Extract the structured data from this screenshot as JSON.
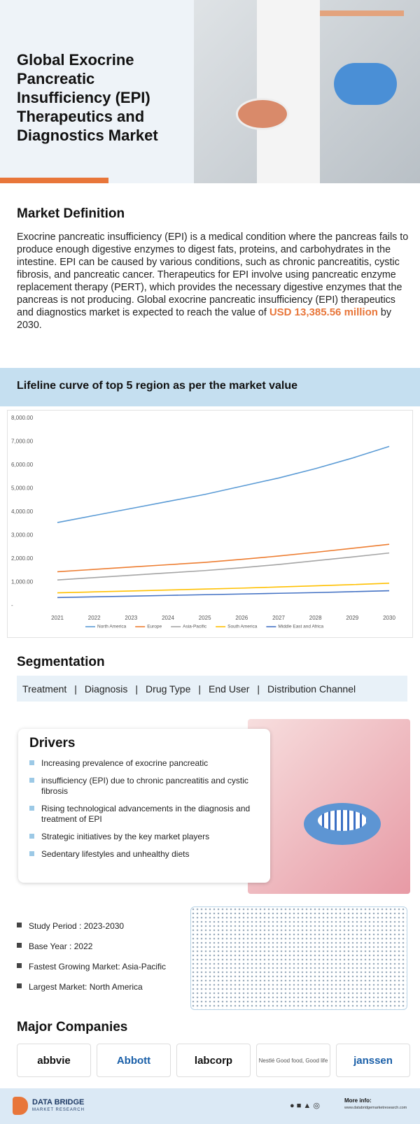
{
  "header": {
    "title": "Global Exocrine Pancreatic Insufficiency (EPI) Therapeutics and Diagnostics Market"
  },
  "definition": {
    "heading": "Market Definition",
    "text": "Exocrine pancreatic insufficiency (EPI) is a medical condition where the pancreas fails to produce enough digestive enzymes to digest fats, proteins, and carbohydrates in the intestine. EPI can be caused by various conditions, such as chronic pancreatitis, cystic fibrosis, and pancreatic cancer. Therapeutics for EPI involve using pancreatic enzyme replacement therapy (PERT), which provides the necessary digestive enzymes that the pancreas is not producing. Global exocrine pancreatic insufficiency (EPI) therapeutics and diagnostics market is expected to reach the value of",
    "highlight": "USD 13,385.56 million",
    "text_end": "by 2030."
  },
  "chart_section": {
    "heading": "Lifeline curve of top 5 region as per the market value"
  },
  "chart_data": {
    "type": "line",
    "categories": [
      "2021",
      "2022",
      "2023",
      "2024",
      "2025",
      "2026",
      "2027",
      "2028",
      "2029",
      "2030"
    ],
    "series": [
      {
        "name": "North America",
        "color": "#5b9bd5",
        "values": [
          3550,
          3850,
          4150,
          4450,
          4750,
          5100,
          5450,
          5850,
          6300,
          6800
        ]
      },
      {
        "name": "Europe",
        "color": "#ed7d31",
        "values": [
          1450,
          1550,
          1650,
          1750,
          1850,
          1980,
          2120,
          2280,
          2450,
          2620
        ]
      },
      {
        "name": "Asia-Pacific",
        "color": "#a5a5a5",
        "values": [
          1100,
          1200,
          1300,
          1400,
          1500,
          1620,
          1760,
          1920,
          2080,
          2250
        ]
      },
      {
        "name": "South America",
        "color": "#ffc000",
        "values": [
          550,
          590,
          630,
          670,
          710,
          750,
          800,
          850,
          900,
          960
        ]
      },
      {
        "name": "Middle East and Africa",
        "color": "#4472c4",
        "values": [
          350,
          380,
          410,
          440,
          470,
          500,
          530,
          560,
          600,
          640
        ]
      }
    ],
    "ylim": [
      0,
      8000
    ],
    "yticks": [
      {
        "value": 0,
        "label": "-"
      },
      {
        "value": 1000,
        "label": "1,000.00"
      },
      {
        "value": 2000,
        "label": "2,000.00"
      },
      {
        "value": 3000,
        "label": "3,000.00"
      },
      {
        "value": 4000,
        "label": "4,000.00"
      },
      {
        "value": 5000,
        "label": "5,000.00"
      },
      {
        "value": 6000,
        "label": "6,000.00"
      },
      {
        "value": 7000,
        "label": "7,000.00"
      },
      {
        "value": 8000,
        "label": "8,000.00"
      }
    ],
    "grid": false,
    "legend": "bottom"
  },
  "segmentation": {
    "heading": "Segmentation",
    "items": [
      "Treatment",
      "Diagnosis",
      "Drug Type",
      "End User",
      "Distribution Channel"
    ]
  },
  "drivers": {
    "heading": "Drivers",
    "items": [
      "Increasing prevalence of exocrine pancreatic",
      "insufficiency (EPI) due to chronic pancreatitis and cystic fibrosis",
      "Rising technological advancements in the diagnosis and treatment of EPI",
      "Strategic initiatives by the key market players",
      "Sedentary lifestyles and unhealthy diets"
    ]
  },
  "facts": [
    "Study Period : 2023-2030",
    "Base Year : 2022",
    "Fastest Growing Market: Asia-Pacific",
    "Largest Market: North America"
  ],
  "companies": {
    "heading": "Major Companies",
    "items": [
      "abbvie",
      "Abbott",
      "labcorp",
      "Nestlé Good food, Good life",
      "janssen"
    ]
  },
  "footer": {
    "brand": "DATA BRIDGE",
    "tagline": "MARKET RESEARCH",
    "more": "More info:",
    "url": "www.databridgemarketresearch.com"
  }
}
